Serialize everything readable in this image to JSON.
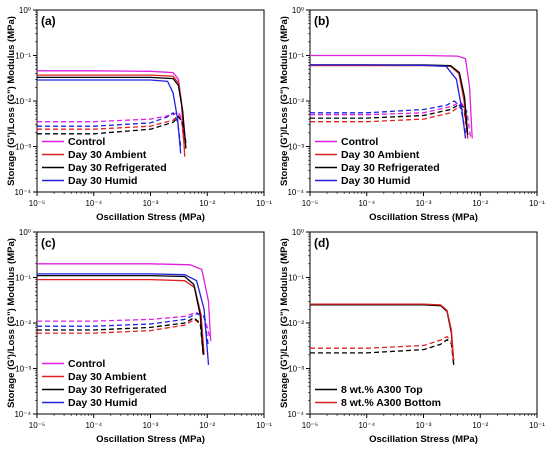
{
  "chart_data": [
    {
      "type": "line",
      "panel_label": "(a)",
      "xlabel": "Oscillation Stress (MPa)",
      "ylabel": "Storage (G')/Loss (G\") Modulus (MPa)",
      "xscale": "log",
      "yscale": "log",
      "xlim": [
        1e-05,
        0.1
      ],
      "ylim": [
        0.0001,
        1
      ],
      "xticks": [
        "10⁻⁵",
        "10⁻⁴",
        "10⁻³",
        "10⁻²",
        "10⁻¹"
      ],
      "yticks": [
        "10⁻⁴",
        "10⁻³",
        "10⁻²",
        "10⁻¹",
        "10⁰"
      ],
      "legend_position": "bottom-left",
      "series": [
        {
          "name": "Control",
          "color": "#e020e0",
          "storage": {
            "x": [
              1e-05,
              0.0001,
              0.001,
              0.0025,
              0.0031,
              0.0035,
              0.0038
            ],
            "y": [
              0.046,
              0.046,
              0.045,
              0.042,
              0.03,
              0.01,
              0.0015
            ]
          },
          "loss": {
            "x": [
              1e-05,
              0.0001,
              0.001,
              0.0025,
              0.0031,
              0.0035,
              0.0038
            ],
            "y": [
              0.0035,
              0.0035,
              0.004,
              0.005,
              0.0058,
              0.004,
              0.0015
            ]
          }
        },
        {
          "name": "Day 30 Ambient",
          "color": "#e02020",
          "storage": {
            "x": [
              1e-05,
              0.0001,
              0.001,
              0.0025,
              0.0031,
              0.0036,
              0.004
            ],
            "y": [
              0.037,
              0.037,
              0.037,
              0.035,
              0.025,
              0.007,
              0.0006
            ]
          },
          "loss": {
            "x": [
              1e-05,
              0.0001,
              0.001,
              0.0025,
              0.0031,
              0.0036,
              0.004
            ],
            "y": [
              0.0024,
              0.0024,
              0.0028,
              0.0038,
              0.0048,
              0.0032,
              0.0009
            ]
          }
        },
        {
          "name": "Day 30 Refrigerated",
          "color": "#000000",
          "storage": {
            "x": [
              1e-05,
              0.0001,
              0.001,
              0.0025,
              0.0031,
              0.0037,
              0.0042
            ],
            "y": [
              0.033,
              0.033,
              0.033,
              0.031,
              0.022,
              0.006,
              0.0009
            ]
          },
          "loss": {
            "x": [
              1e-05,
              0.0001,
              0.001,
              0.0025,
              0.0031,
              0.0037,
              0.0042
            ],
            "y": [
              0.0019,
              0.0019,
              0.0024,
              0.0034,
              0.0045,
              0.0035,
              0.0012
            ]
          }
        },
        {
          "name": "Day 30 Humid",
          "color": "#2020e0",
          "storage": {
            "x": [
              1e-05,
              0.0001,
              0.001,
              0.002,
              0.0025,
              0.003,
              0.0034
            ],
            "y": [
              0.029,
              0.029,
              0.029,
              0.027,
              0.015,
              0.004,
              0.0007
            ]
          },
          "loss": {
            "x": [
              1e-05,
              0.0001,
              0.001,
              0.002,
              0.0025,
              0.003,
              0.0034
            ],
            "y": [
              0.0028,
              0.0028,
              0.0033,
              0.0045,
              0.0055,
              0.0035,
              0.001
            ]
          }
        }
      ]
    },
    {
      "type": "line",
      "panel_label": "(b)",
      "xlabel": "Oscillation Stress (MPa)",
      "ylabel": "Storage (G')/Loss (G\") Modulus (MPa)",
      "xscale": "log",
      "yscale": "log",
      "xlim": [
        1e-05,
        0.1
      ],
      "ylim": [
        0.0001,
        1
      ],
      "xticks": [
        "10⁻⁵",
        "10⁻⁴",
        "10⁻³",
        "10⁻²",
        "10⁻¹"
      ],
      "yticks": [
        "10⁻⁴",
        "10⁻³",
        "10⁻²",
        "10⁻¹",
        "10⁰"
      ],
      "legend_position": "bottom-left",
      "series": [
        {
          "name": "Control",
          "color": "#e020e0",
          "storage": {
            "x": [
              1e-05,
              0.0001,
              0.001,
              0.004,
              0.0055,
              0.0065,
              0.0072
            ],
            "y": [
              0.1,
              0.1,
              0.1,
              0.097,
              0.085,
              0.02,
              0.0015
            ]
          },
          "loss": {
            "x": [
              1e-05,
              0.0001,
              0.001,
              0.003,
              0.0045,
              0.0058,
              0.0068
            ],
            "y": [
              0.005,
              0.005,
              0.0055,
              0.0075,
              0.0095,
              0.006,
              0.0015
            ]
          }
        },
        {
          "name": "Day 30 Ambient",
          "color": "#e02020",
          "storage": {
            "x": [
              1e-05,
              0.0001,
              0.001,
              0.003,
              0.0042,
              0.0052,
              0.006
            ],
            "y": [
              0.06,
              0.06,
              0.06,
              0.058,
              0.04,
              0.01,
              0.0015
            ]
          },
          "loss": {
            "x": [
              1e-05,
              0.0001,
              0.001,
              0.003,
              0.0042,
              0.0052,
              0.006
            ],
            "y": [
              0.0035,
              0.0035,
              0.004,
              0.0055,
              0.0075,
              0.006,
              0.0015
            ]
          }
        },
        {
          "name": "Day 30 Refrigerated",
          "color": "#000000",
          "storage": {
            "x": [
              1e-05,
              0.0001,
              0.001,
              0.003,
              0.0043,
              0.0053,
              0.006
            ],
            "y": [
              0.062,
              0.062,
              0.062,
              0.06,
              0.042,
              0.012,
              0.0018
            ]
          },
          "loss": {
            "x": [
              1e-05,
              0.0001,
              0.001,
              0.003,
              0.0043,
              0.0053,
              0.006
            ],
            "y": [
              0.0042,
              0.0042,
              0.0048,
              0.0065,
              0.0085,
              0.007,
              0.0018
            ]
          }
        },
        {
          "name": "Day 30 Humid",
          "color": "#2020e0",
          "storage": {
            "x": [
              1e-05,
              0.0001,
              0.001,
              0.0025,
              0.0038,
              0.0047,
              0.0055
            ],
            "y": [
              0.062,
              0.062,
              0.061,
              0.058,
              0.03,
              0.007,
              0.0015
            ]
          },
          "loss": {
            "x": [
              1e-05,
              0.0001,
              0.001,
              0.0025,
              0.0035,
              0.0045,
              0.0055
            ],
            "y": [
              0.0055,
              0.0055,
              0.0065,
              0.008,
              0.01,
              0.0075,
              0.002
            ]
          }
        }
      ]
    },
    {
      "type": "line",
      "panel_label": "(c)",
      "xlabel": "Oscillation Stress (MPa)",
      "ylabel": "Storage (G')/Loss (G\") Modulus (MPa)",
      "xscale": "log",
      "yscale": "log",
      "xlim": [
        1e-05,
        0.1
      ],
      "ylim": [
        0.0001,
        1
      ],
      "xticks": [
        "10⁻⁵",
        "10⁻⁴",
        "10⁻³",
        "10⁻²",
        "10⁻¹"
      ],
      "yticks": [
        "10⁻⁴",
        "10⁻³",
        "10⁻²",
        "10⁻¹",
        "10⁰"
      ],
      "legend_position": "bottom-left",
      "series": [
        {
          "name": "Control",
          "color": "#e020e0",
          "storage": {
            "x": [
              1e-05,
              0.0001,
              0.001,
              0.005,
              0.008,
              0.0105,
              0.0115
            ],
            "y": [
              0.2,
              0.2,
              0.2,
              0.19,
              0.15,
              0.03,
              0.004
            ]
          },
          "loss": {
            "x": [
              1e-05,
              0.0001,
              0.001,
              0.004,
              0.0065,
              0.009,
              0.011
            ],
            "y": [
              0.011,
              0.011,
              0.012,
              0.014,
              0.017,
              0.013,
              0.005
            ]
          }
        },
        {
          "name": "Day 30 Ambient",
          "color": "#e02020",
          "storage": {
            "x": [
              1e-05,
              0.0001,
              0.001,
              0.004,
              0.006,
              0.0078,
              0.0088
            ],
            "y": [
              0.09,
              0.09,
              0.09,
              0.085,
              0.06,
              0.015,
              0.002
            ]
          },
          "loss": {
            "x": [
              1e-05,
              0.0001,
              0.001,
              0.004,
              0.006,
              0.0078,
              0.0088
            ],
            "y": [
              0.006,
              0.006,
              0.0068,
              0.009,
              0.012,
              0.009,
              0.002
            ]
          }
        },
        {
          "name": "Day 30 Refrigerated",
          "color": "#000000",
          "storage": {
            "x": [
              1e-05,
              0.0001,
              0.001,
              0.004,
              0.0058,
              0.0075,
              0.0085
            ],
            "y": [
              0.11,
              0.11,
              0.11,
              0.105,
              0.07,
              0.015,
              0.002
            ]
          },
          "loss": {
            "x": [
              1e-05,
              0.0001,
              0.001,
              0.004,
              0.0058,
              0.0075,
              0.0085
            ],
            "y": [
              0.007,
              0.007,
              0.008,
              0.01,
              0.013,
              0.01,
              0.002
            ]
          }
        },
        {
          "name": "Day 30 Humid",
          "color": "#2020e0",
          "storage": {
            "x": [
              1e-05,
              0.0001,
              0.001,
              0.004,
              0.0065,
              0.0088,
              0.0105
            ],
            "y": [
              0.12,
              0.12,
              0.12,
              0.115,
              0.085,
              0.02,
              0.0012
            ]
          },
          "loss": {
            "x": [
              1e-05,
              0.0001,
              0.001,
              0.004,
              0.0065,
              0.0088,
              0.0105
            ],
            "y": [
              0.0085,
              0.0085,
              0.0095,
              0.012,
              0.016,
              0.014,
              0.003
            ]
          }
        }
      ]
    },
    {
      "type": "line",
      "panel_label": "(d)",
      "xlabel": "Oscillation Stress (MPa)",
      "ylabel": "Storage (G')/Loss (G\") Modulus (MPa)",
      "xscale": "log",
      "yscale": "log",
      "xlim": [
        1e-05,
        0.1
      ],
      "ylim": [
        0.0001,
        1
      ],
      "xticks": [
        "10⁻⁵",
        "10⁻⁴",
        "10⁻³",
        "10⁻²",
        "10⁻¹"
      ],
      "yticks": [
        "10⁻⁴",
        "10⁻³",
        "10⁻²",
        "10⁻¹",
        "10⁰"
      ],
      "legend_position": "bottom-left",
      "series": [
        {
          "name": "8 wt.% A300 Top",
          "color": "#000000",
          "storage": {
            "x": [
              1e-05,
              0.0001,
              0.001,
              0.002,
              0.0026,
              0.0031,
              0.0034
            ],
            "y": [
              0.025,
              0.025,
              0.025,
              0.024,
              0.018,
              0.006,
              0.0012
            ]
          },
          "loss": {
            "x": [
              1e-05,
              0.0001,
              0.001,
              0.002,
              0.0026,
              0.0031,
              0.0034
            ],
            "y": [
              0.0022,
              0.0022,
              0.0026,
              0.0034,
              0.0043,
              0.0035,
              0.0012
            ]
          }
        },
        {
          "name": "8 wt.% A300 Bottom",
          "color": "#e02020",
          "storage": {
            "x": [
              1e-05,
              0.0001,
              0.001,
              0.002,
              0.0026,
              0.0031,
              0.0034
            ],
            "y": [
              0.026,
              0.026,
              0.026,
              0.025,
              0.019,
              0.007,
              0.0015
            ]
          },
          "loss": {
            "x": [
              1e-05,
              0.0001,
              0.001,
              0.002,
              0.0026,
              0.0031,
              0.0034
            ],
            "y": [
              0.0028,
              0.0028,
              0.0032,
              0.0042,
              0.005,
              0.004,
              0.0015
            ]
          }
        }
      ]
    }
  ]
}
